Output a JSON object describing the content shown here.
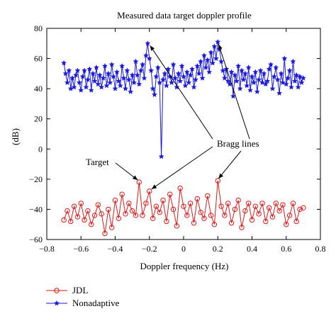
{
  "chart_data": {
    "type": "line",
    "title": "Measured data target doppler profile",
    "xlabel": "Doppler frequency (Hz)",
    "ylabel": "(dB)",
    "xlim": [
      -0.8,
      0.8
    ],
    "ylim": [
      -60,
      80
    ],
    "xticks": [
      -0.8,
      -0.6,
      -0.4,
      -0.2,
      0,
      0.2,
      0.4,
      0.6,
      0.8
    ],
    "xtick_labels": [
      "−0.8",
      "−0.6",
      "−0.4",
      "−0.2",
      "0",
      "0.2",
      "0.4",
      "0.6",
      "0.8"
    ],
    "yticks": [
      -60,
      -40,
      -20,
      0,
      20,
      40,
      60,
      80
    ],
    "ytick_labels": [
      "−60",
      "−40",
      "−20",
      "0",
      "20",
      "40",
      "60",
      "80"
    ],
    "grid": false,
    "legend_position": "bottom-left-outside",
    "annotations": [
      {
        "text": "Target",
        "points_to": [
          -0.26,
          -22
        ]
      },
      {
        "text": "Bragg lines",
        "points_to": [
          [
            -0.2,
            70
          ],
          [
            0.2,
            71
          ],
          [
            -0.2,
            -28
          ],
          [
            0.2,
            -21
          ]
        ]
      }
    ],
    "series": [
      {
        "name": "JDL",
        "color": "#e01818",
        "marker": "circle",
        "x": [
          -0.7,
          -0.68,
          -0.66,
          -0.64,
          -0.62,
          -0.6,
          -0.58,
          -0.56,
          -0.54,
          -0.52,
          -0.5,
          -0.48,
          -0.46,
          -0.44,
          -0.42,
          -0.4,
          -0.38,
          -0.36,
          -0.34,
          -0.32,
          -0.3,
          -0.28,
          -0.26,
          -0.24,
          -0.22,
          -0.2,
          -0.18,
          -0.16,
          -0.14,
          -0.12,
          -0.1,
          -0.08,
          -0.06,
          -0.04,
          -0.02,
          0,
          0.02,
          0.04,
          0.06,
          0.08,
          0.1,
          0.12,
          0.14,
          0.16,
          0.18,
          0.2,
          0.22,
          0.24,
          0.26,
          0.28,
          0.3,
          0.32,
          0.34,
          0.36,
          0.38,
          0.4,
          0.42,
          0.44,
          0.46,
          0.48,
          0.5,
          0.52,
          0.54,
          0.56,
          0.58,
          0.6,
          0.62,
          0.64,
          0.66,
          0.68,
          0.7
        ],
        "y": [
          -47,
          -41,
          -48,
          -38,
          -45,
          -36,
          -47,
          -41,
          -50,
          -44,
          -37,
          -43,
          -56,
          -40,
          -52,
          -34,
          -46,
          -30,
          -43,
          -36,
          -41,
          -44,
          -22,
          -44,
          -36,
          -28,
          -46,
          -38,
          -42,
          -34,
          -48,
          -30,
          -40,
          -51,
          -26,
          -38,
          -44,
          -36,
          -49,
          -33,
          -42,
          -46,
          -31,
          -44,
          -50,
          -21,
          -38,
          -44,
          -36,
          -49,
          -40,
          -34,
          -52,
          -41,
          -36,
          -47,
          -38,
          -43,
          -36,
          -48,
          -39,
          -45,
          -36,
          -41,
          -37,
          -50,
          -44,
          -36,
          -48,
          -40,
          -39
        ]
      },
      {
        "name": "Nonadaptive",
        "color": "#1a1ae0",
        "marker": "star",
        "x": [
          -0.7,
          -0.69,
          -0.68,
          -0.67,
          -0.66,
          -0.65,
          -0.64,
          -0.63,
          -0.62,
          -0.61,
          -0.6,
          -0.59,
          -0.58,
          -0.57,
          -0.56,
          -0.55,
          -0.54,
          -0.53,
          -0.52,
          -0.51,
          -0.5,
          -0.49,
          -0.48,
          -0.47,
          -0.46,
          -0.45,
          -0.44,
          -0.43,
          -0.42,
          -0.41,
          -0.4,
          -0.39,
          -0.38,
          -0.37,
          -0.36,
          -0.35,
          -0.34,
          -0.33,
          -0.32,
          -0.31,
          -0.3,
          -0.29,
          -0.28,
          -0.27,
          -0.26,
          -0.25,
          -0.24,
          -0.23,
          -0.22,
          -0.21,
          -0.2,
          -0.19,
          -0.18,
          -0.17,
          -0.16,
          -0.15,
          -0.14,
          -0.13,
          -0.12,
          -0.11,
          -0.1,
          -0.09,
          -0.08,
          -0.07,
          -0.06,
          -0.05,
          -0.04,
          -0.03,
          -0.02,
          -0.01,
          0,
          0.01,
          0.02,
          0.03,
          0.04,
          0.05,
          0.06,
          0.07,
          0.08,
          0.09,
          0.1,
          0.11,
          0.12,
          0.13,
          0.14,
          0.15,
          0.16,
          0.17,
          0.18,
          0.19,
          0.2,
          0.21,
          0.22,
          0.23,
          0.24,
          0.25,
          0.26,
          0.27,
          0.28,
          0.29,
          0.3,
          0.31,
          0.32,
          0.33,
          0.34,
          0.35,
          0.36,
          0.37,
          0.38,
          0.39,
          0.4,
          0.41,
          0.42,
          0.43,
          0.44,
          0.45,
          0.46,
          0.47,
          0.48,
          0.49,
          0.5,
          0.51,
          0.52,
          0.53,
          0.54,
          0.55,
          0.56,
          0.57,
          0.58,
          0.59,
          0.6,
          0.61,
          0.62,
          0.63,
          0.64,
          0.65,
          0.66,
          0.67,
          0.68,
          0.69,
          0.7
        ],
        "y": [
          57,
          50,
          44,
          52,
          40,
          47,
          41,
          49,
          52,
          44,
          39,
          48,
          52,
          41,
          46,
          53,
          39,
          50,
          45,
          54,
          43,
          49,
          41,
          47,
          55,
          42,
          50,
          44,
          56,
          48,
          40,
          51,
          45,
          42,
          55,
          47,
          40,
          52,
          46,
          38,
          49,
          44,
          58,
          49,
          43,
          52,
          56,
          47,
          62,
          70,
          60,
          52,
          40,
          36,
          48,
          54,
          44,
          -5,
          46,
          50,
          42,
          53,
          48,
          44,
          56,
          47,
          41,
          50,
          45,
          55,
          48,
          42,
          51,
          44,
          49,
          53,
          41,
          46,
          55,
          50,
          58,
          47,
          62,
          54,
          59,
          51,
          64,
          57,
          68,
          60,
          71,
          66,
          58,
          52,
          47,
          53,
          45,
          43,
          51,
          35,
          49,
          45,
          55,
          40,
          52,
          46,
          50,
          42,
          54,
          39,
          48,
          44,
          51,
          38,
          46,
          52,
          44,
          50,
          43,
          45,
          53,
          56,
          40,
          48,
          54,
          46,
          37,
          50,
          44,
          60,
          43,
          47,
          52,
          41,
          58,
          45,
          49,
          41,
          48,
          44,
          47
        ]
      }
    ]
  }
}
